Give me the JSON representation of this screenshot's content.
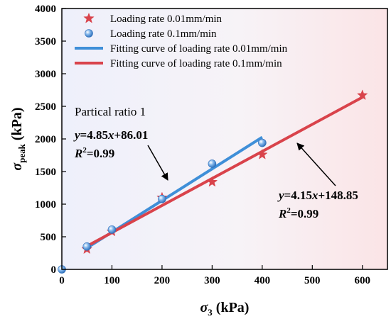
{
  "chart_data": {
    "type": "scatter",
    "xlabel": "σ3 (kPa)",
    "xlabel_main": "σ",
    "xlabel_sub": "3",
    "xlabel_unit": " (kPa)",
    "ylabel": "σpeak (kPa)",
    "ylabel_main": "σ",
    "ylabel_sub": "peak",
    "ylabel_unit": " (kPa)",
    "xlim": [
      0,
      650
    ],
    "ylim": [
      0,
      4000
    ],
    "xticks": [
      0,
      100,
      200,
      300,
      400,
      500,
      600
    ],
    "yticks": [
      0,
      500,
      1000,
      1500,
      2000,
      2500,
      3000,
      3500,
      4000
    ],
    "grid": false,
    "legend_position": "top-right",
    "series": [
      {
        "name": "Loading rate 0.01mm/min",
        "kind": "points",
        "marker": "star",
        "color": "#d9434b",
        "x": [
          50,
          100,
          200,
          300,
          400,
          600
        ],
        "y": [
          310,
          580,
          1100,
          1340,
          1760,
          2670
        ]
      },
      {
        "name": "Loading rate 0.1mm/min",
        "kind": "points",
        "marker": "sphere",
        "color": "#4a90d9",
        "x": [
          0,
          50,
          100,
          200,
          300,
          400
        ],
        "y": [
          0,
          350,
          610,
          1080,
          1620,
          1940
        ]
      },
      {
        "name": "Fitting curve of loading rate 0.01mm/min",
        "kind": "line",
        "color": "#3f8fd8",
        "x": [
          50,
          400
        ],
        "y": [
          328.51,
          2026.01
        ]
      },
      {
        "name": "Fitting curve of loading rate 0.1mm/min",
        "kind": "line",
        "color": "#d9434b",
        "x": [
          50,
          600
        ],
        "y": [
          356.35,
          2638.85
        ]
      }
    ],
    "annotations": {
      "particle_ratio": "Partical ratio 1",
      "eq1_y": "y",
      "eq1_rest": "=4.85",
      "eq1_x": "x",
      "eq1_const": "+86.01",
      "eq1_r": "R",
      "eq1_r_sup": "2",
      "eq1_r_val": "=0.99",
      "eq2_y": "y",
      "eq2_rest": "=4.15",
      "eq2_x": "x",
      "eq2_const": "+148.85",
      "eq2_r": "R",
      "eq2_r_sup": "2",
      "eq2_r_val": "=0.99"
    }
  }
}
